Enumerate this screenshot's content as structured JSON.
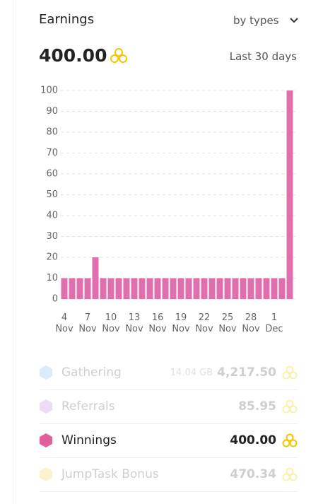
{
  "header": {
    "title": "Earnings",
    "dropdown": "by types"
  },
  "total": {
    "amount": "400.00",
    "period": "Last 30 days"
  },
  "chart_data": {
    "type": "bar",
    "categories": [
      "4 Nov",
      null,
      null,
      "7 Nov",
      null,
      null,
      "10 Nov",
      null,
      null,
      "13 Nov",
      null,
      null,
      "16 Nov",
      null,
      null,
      "19 Nov",
      null,
      null,
      "22 Nov",
      null,
      null,
      "25 Nov",
      null,
      null,
      "28 Nov",
      null,
      null,
      "1 Dec",
      null,
      null
    ],
    "values": [
      10,
      10,
      10,
      10,
      20,
      10,
      10,
      10,
      10,
      10,
      10,
      10,
      10,
      10,
      10,
      10,
      10,
      10,
      10,
      10,
      10,
      10,
      10,
      10,
      10,
      10,
      10,
      10,
      10,
      100
    ],
    "color": "#e070ad",
    "ylim": [
      0,
      100
    ],
    "yticks": [
      0,
      10,
      20,
      30,
      40,
      50,
      60,
      70,
      80,
      90,
      100
    ],
    "grid": true
  },
  "legend": [
    {
      "name": "Gathering",
      "extra": "14.04 GB",
      "value": "4,217.50"
    },
    {
      "name": "Referrals",
      "value": "85.95"
    },
    {
      "name": "Winnings",
      "value": "400.00"
    },
    {
      "name": "JumpTask Bonus",
      "value": "470.34"
    }
  ]
}
